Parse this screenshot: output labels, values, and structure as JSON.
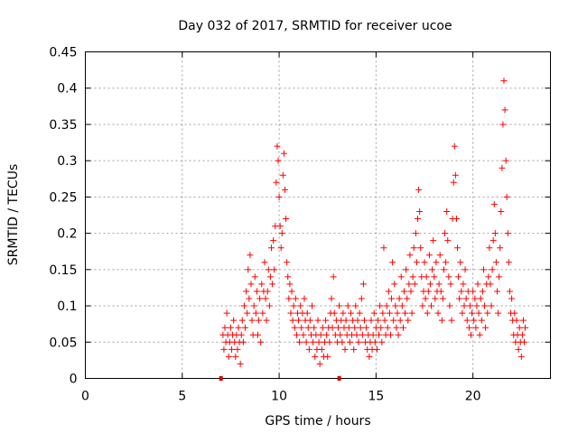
{
  "chart_data": {
    "type": "scatter",
    "title": "Day 032 of 2017, SRMTID for receiver ucoe",
    "xlabel": "GPS time / hours",
    "ylabel": "SRMTID / TECUs",
    "xlim": [
      0,
      24
    ],
    "ylim": [
      0,
      0.45
    ],
    "xticks": [
      0,
      5,
      10,
      15,
      20
    ],
    "yticks": [
      0,
      0.05,
      0.1,
      0.15,
      0.2,
      0.25,
      0.3,
      0.35,
      0.4,
      0.45
    ],
    "grid": true,
    "marker": "+",
    "color": "#ff0000",
    "gap_marker_color": "#d00000",
    "gap_markers_x": [
      7.0,
      13.1
    ],
    "series": [
      {
        "name": "SRMTID",
        "points": [
          [
            7.1,
            0.06
          ],
          [
            7.15,
            0.04
          ],
          [
            7.2,
            0.07
          ],
          [
            7.25,
            0.05
          ],
          [
            7.3,
            0.09
          ],
          [
            7.35,
            0.06
          ],
          [
            7.4,
            0.03
          ],
          [
            7.45,
            0.05
          ],
          [
            7.5,
            0.07
          ],
          [
            7.55,
            0.04
          ],
          [
            7.6,
            0.06
          ],
          [
            7.65,
            0.08
          ],
          [
            7.7,
            0.05
          ],
          [
            7.75,
            0.03
          ],
          [
            7.8,
            0.06
          ],
          [
            7.85,
            0.04
          ],
          [
            7.9,
            0.07
          ],
          [
            7.95,
            0.05
          ],
          [
            8.0,
            0.02
          ],
          [
            8.05,
            0.06
          ],
          [
            8.1,
            0.08
          ],
          [
            8.15,
            0.05
          ],
          [
            8.2,
            0.1
          ],
          [
            8.25,
            0.07
          ],
          [
            8.3,
            0.12
          ],
          [
            8.35,
            0.09
          ],
          [
            8.4,
            0.15
          ],
          [
            8.45,
            0.11
          ],
          [
            8.5,
            0.17
          ],
          [
            8.55,
            0.13
          ],
          [
            8.6,
            0.08
          ],
          [
            8.65,
            0.06
          ],
          [
            8.7,
            0.1
          ],
          [
            8.75,
            0.14
          ],
          [
            8.8,
            0.09
          ],
          [
            8.85,
            0.12
          ],
          [
            8.9,
            0.06
          ],
          [
            8.95,
            0.08
          ],
          [
            9.0,
            0.11
          ],
          [
            9.05,
            0.05
          ],
          [
            9.1,
            0.13
          ],
          [
            9.15,
            0.09
          ],
          [
            9.2,
            0.12
          ],
          [
            9.25,
            0.16
          ],
          [
            9.3,
            0.11
          ],
          [
            9.35,
            0.08
          ],
          [
            9.4,
            0.12
          ],
          [
            9.45,
            0.15
          ],
          [
            9.5,
            0.1
          ],
          [
            9.55,
            0.14
          ],
          [
            9.6,
            0.18
          ],
          [
            9.65,
            0.13
          ],
          [
            9.7,
            0.19
          ],
          [
            9.75,
            0.15
          ],
          [
            9.8,
            0.21
          ],
          [
            9.85,
            0.27
          ],
          [
            9.9,
            0.32
          ],
          [
            9.95,
            0.3
          ],
          [
            10.0,
            0.25
          ],
          [
            10.05,
            0.21
          ],
          [
            10.1,
            0.18
          ],
          [
            10.15,
            0.2
          ],
          [
            10.2,
            0.28
          ],
          [
            10.25,
            0.31
          ],
          [
            10.3,
            0.26
          ],
          [
            10.35,
            0.22
          ],
          [
            10.4,
            0.16
          ],
          [
            10.45,
            0.14
          ],
          [
            10.5,
            0.11
          ],
          [
            10.55,
            0.13
          ],
          [
            10.6,
            0.09
          ],
          [
            10.65,
            0.12
          ],
          [
            10.7,
            0.08
          ],
          [
            10.75,
            0.1
          ],
          [
            10.8,
            0.07
          ],
          [
            10.85,
            0.11
          ],
          [
            10.9,
            0.06
          ],
          [
            10.95,
            0.09
          ],
          [
            11.0,
            0.08
          ],
          [
            11.05,
            0.05
          ],
          [
            11.1,
            0.1
          ],
          [
            11.15,
            0.07
          ],
          [
            11.2,
            0.09
          ],
          [
            11.25,
            0.06
          ],
          [
            11.3,
            0.11
          ],
          [
            11.35,
            0.08
          ],
          [
            11.4,
            0.05
          ],
          [
            11.45,
            0.09
          ],
          [
            11.5,
            0.07
          ],
          [
            11.55,
            0.04
          ],
          [
            11.6,
            0.08
          ],
          [
            11.65,
            0.06
          ],
          [
            11.7,
            0.1
          ],
          [
            11.75,
            0.05
          ],
          [
            11.8,
            0.07
          ],
          [
            11.85,
            0.03
          ],
          [
            11.9,
            0.06
          ],
          [
            11.95,
            0.04
          ],
          [
            12.0,
            0.08
          ],
          [
            12.05,
            0.05
          ],
          [
            12.1,
            0.02
          ],
          [
            12.15,
            0.06
          ],
          [
            12.2,
            0.04
          ],
          [
            12.25,
            0.07
          ],
          [
            12.3,
            0.03
          ],
          [
            12.35,
            0.05
          ],
          [
            12.4,
            0.08
          ],
          [
            12.45,
            0.06
          ],
          [
            12.5,
            0.03
          ],
          [
            12.55,
            0.07
          ],
          [
            12.6,
            0.05
          ],
          [
            12.65,
            0.09
          ],
          [
            12.7,
            0.11
          ],
          [
            12.75,
            0.07
          ],
          [
            12.8,
            0.14
          ],
          [
            12.85,
            0.09
          ],
          [
            12.9,
            0.06
          ],
          [
            12.95,
            0.08
          ],
          [
            13.0,
            0.05
          ],
          [
            13.05,
            0.07
          ],
          [
            13.1,
            0.1
          ],
          [
            13.15,
            0.06
          ],
          [
            13.2,
            0.08
          ],
          [
            13.25,
            0.05
          ],
          [
            13.3,
            0.09
          ],
          [
            13.35,
            0.07
          ],
          [
            13.4,
            0.04
          ],
          [
            13.45,
            0.08
          ],
          [
            13.5,
            0.06
          ],
          [
            13.55,
            0.1
          ],
          [
            13.6,
            0.07
          ],
          [
            13.65,
            0.05
          ],
          [
            13.7,
            0.09
          ],
          [
            13.75,
            0.06
          ],
          [
            13.8,
            0.08
          ],
          [
            13.85,
            0.04
          ],
          [
            13.9,
            0.07
          ],
          [
            13.95,
            0.1
          ],
          [
            14.0,
            0.06
          ],
          [
            14.05,
            0.08
          ],
          [
            14.1,
            0.05
          ],
          [
            14.15,
            0.09
          ],
          [
            14.2,
            0.07
          ],
          [
            14.25,
            0.11
          ],
          [
            14.3,
            0.06
          ],
          [
            14.35,
            0.13
          ],
          [
            14.4,
            0.08
          ],
          [
            14.45,
            0.05
          ],
          [
            14.5,
            0.07
          ],
          [
            14.55,
            0.04
          ],
          [
            14.6,
            0.06
          ],
          [
            14.65,
            0.03
          ],
          [
            14.7,
            0.05
          ],
          [
            14.75,
            0.08
          ],
          [
            14.8,
            0.04
          ],
          [
            14.85,
            0.06
          ],
          [
            14.9,
            0.09
          ],
          [
            14.95,
            0.05
          ],
          [
            15.0,
            0.07
          ],
          [
            15.05,
            0.04
          ],
          [
            15.1,
            0.08
          ],
          [
            15.15,
            0.06
          ],
          [
            15.2,
            0.1
          ],
          [
            15.25,
            0.07
          ],
          [
            15.3,
            0.05
          ],
          [
            15.35,
            0.09
          ],
          [
            15.4,
            0.18
          ],
          [
            15.45,
            0.08
          ],
          [
            15.5,
            0.06
          ],
          [
            15.55,
            0.1
          ],
          [
            15.6,
            0.07
          ],
          [
            15.65,
            0.12
          ],
          [
            15.7,
            0.09
          ],
          [
            15.75,
            0.06
          ],
          [
            15.8,
            0.11
          ],
          [
            15.85,
            0.16
          ],
          [
            15.9,
            0.08
          ],
          [
            15.95,
            0.13
          ],
          [
            16.0,
            0.1
          ],
          [
            16.05,
            0.07
          ],
          [
            16.1,
            0.09
          ],
          [
            16.15,
            0.06
          ],
          [
            16.2,
            0.11
          ],
          [
            16.25,
            0.08
          ],
          [
            16.3,
            0.14
          ],
          [
            16.35,
            0.1
          ],
          [
            16.4,
            0.07
          ],
          [
            16.45,
            0.12
          ],
          [
            16.5,
            0.09
          ],
          [
            16.55,
            0.15
          ],
          [
            16.6,
            0.11
          ],
          [
            16.65,
            0.08
          ],
          [
            16.7,
            0.13
          ],
          [
            16.75,
            0.17
          ],
          [
            16.8,
            0.12
          ],
          [
            16.85,
            0.09
          ],
          [
            16.9,
            0.14
          ],
          [
            16.95,
            0.18
          ],
          [
            17.0,
            0.13
          ],
          [
            17.05,
            0.2
          ],
          [
            17.1,
            0.16
          ],
          [
            17.15,
            0.22
          ],
          [
            17.2,
            0.26
          ],
          [
            17.25,
            0.23
          ],
          [
            17.3,
            0.18
          ],
          [
            17.35,
            0.14
          ],
          [
            17.4,
            0.1
          ],
          [
            17.45,
            0.12
          ],
          [
            17.5,
            0.16
          ],
          [
            17.55,
            0.11
          ],
          [
            17.6,
            0.14
          ],
          [
            17.65,
            0.09
          ],
          [
            17.7,
            0.12
          ],
          [
            17.75,
            0.17
          ],
          [
            17.8,
            0.13
          ],
          [
            17.85,
            0.1
          ],
          [
            17.9,
            0.15
          ],
          [
            17.95,
            0.19
          ],
          [
            18.0,
            0.14
          ],
          [
            18.05,
            0.11
          ],
          [
            18.1,
            0.16
          ],
          [
            18.15,
            0.12
          ],
          [
            18.2,
            0.09
          ],
          [
            18.25,
            0.13
          ],
          [
            18.3,
            0.17
          ],
          [
            18.35,
            0.12
          ],
          [
            18.4,
            0.08
          ],
          [
            18.45,
            0.11
          ],
          [
            18.5,
            0.15
          ],
          [
            18.55,
            0.2
          ],
          [
            18.6,
            0.16
          ],
          [
            18.65,
            0.23
          ],
          [
            18.7,
            0.19
          ],
          [
            18.75,
            0.14
          ],
          [
            18.8,
            0.1
          ],
          [
            18.85,
            0.13
          ],
          [
            18.9,
            0.08
          ],
          [
            18.95,
            0.22
          ],
          [
            19.0,
            0.27
          ],
          [
            19.05,
            0.32
          ],
          [
            19.1,
            0.28
          ],
          [
            19.15,
            0.22
          ],
          [
            19.2,
            0.18
          ],
          [
            19.25,
            0.14
          ],
          [
            19.3,
            0.11
          ],
          [
            19.35,
            0.16
          ],
          [
            19.4,
            0.12
          ],
          [
            19.45,
            0.09
          ],
          [
            19.5,
            0.13
          ],
          [
            19.55,
            0.1
          ],
          [
            19.6,
            0.15
          ],
          [
            19.65,
            0.11
          ],
          [
            19.7,
            0.08
          ],
          [
            19.75,
            0.12
          ],
          [
            19.8,
            0.07
          ],
          [
            19.85,
            0.1
          ],
          [
            19.9,
            0.06
          ],
          [
            19.95,
            0.09
          ],
          [
            20.0,
            0.12
          ],
          [
            20.05,
            0.08
          ],
          [
            20.1,
            0.11
          ],
          [
            20.15,
            0.07
          ],
          [
            20.2,
            0.1
          ],
          [
            20.25,
            0.13
          ],
          [
            20.3,
            0.09
          ],
          [
            20.35,
            0.06
          ],
          [
            20.4,
            0.11
          ],
          [
            20.45,
            0.08
          ],
          [
            20.5,
            0.12
          ],
          [
            20.55,
            0.15
          ],
          [
            20.6,
            0.1
          ],
          [
            20.65,
            0.07
          ],
          [
            20.7,
            0.13
          ],
          [
            20.75,
            0.09
          ],
          [
            20.8,
            0.14
          ],
          [
            20.85,
            0.18
          ],
          [
            20.9,
            0.13
          ],
          [
            20.95,
            0.1
          ],
          [
            21.0,
            0.15
          ],
          [
            21.05,
            0.19
          ],
          [
            21.1,
            0.24
          ],
          [
            21.15,
            0.2
          ],
          [
            21.2,
            0.16
          ],
          [
            21.25,
            0.12
          ],
          [
            21.3,
            0.09
          ],
          [
            21.35,
            0.14
          ],
          [
            21.4,
            0.18
          ],
          [
            21.45,
            0.23
          ],
          [
            21.5,
            0.29
          ],
          [
            21.55,
            0.35
          ],
          [
            21.6,
            0.41
          ],
          [
            21.65,
            0.37
          ],
          [
            21.7,
            0.3
          ],
          [
            21.75,
            0.25
          ],
          [
            21.8,
            0.2
          ],
          [
            21.85,
            0.16
          ],
          [
            21.9,
            0.12
          ],
          [
            21.95,
            0.09
          ],
          [
            22.0,
            0.11
          ],
          [
            22.05,
            0.08
          ],
          [
            22.1,
            0.06
          ],
          [
            22.15,
            0.09
          ],
          [
            22.2,
            0.05
          ],
          [
            22.25,
            0.08
          ],
          [
            22.3,
            0.06
          ],
          [
            22.35,
            0.04
          ],
          [
            22.4,
            0.07
          ],
          [
            22.45,
            0.05
          ],
          [
            22.5,
            0.03
          ],
          [
            22.55,
            0.06
          ],
          [
            22.6,
            0.08
          ],
          [
            22.65,
            0.05
          ],
          [
            22.7,
            0.07
          ]
        ]
      }
    ]
  }
}
